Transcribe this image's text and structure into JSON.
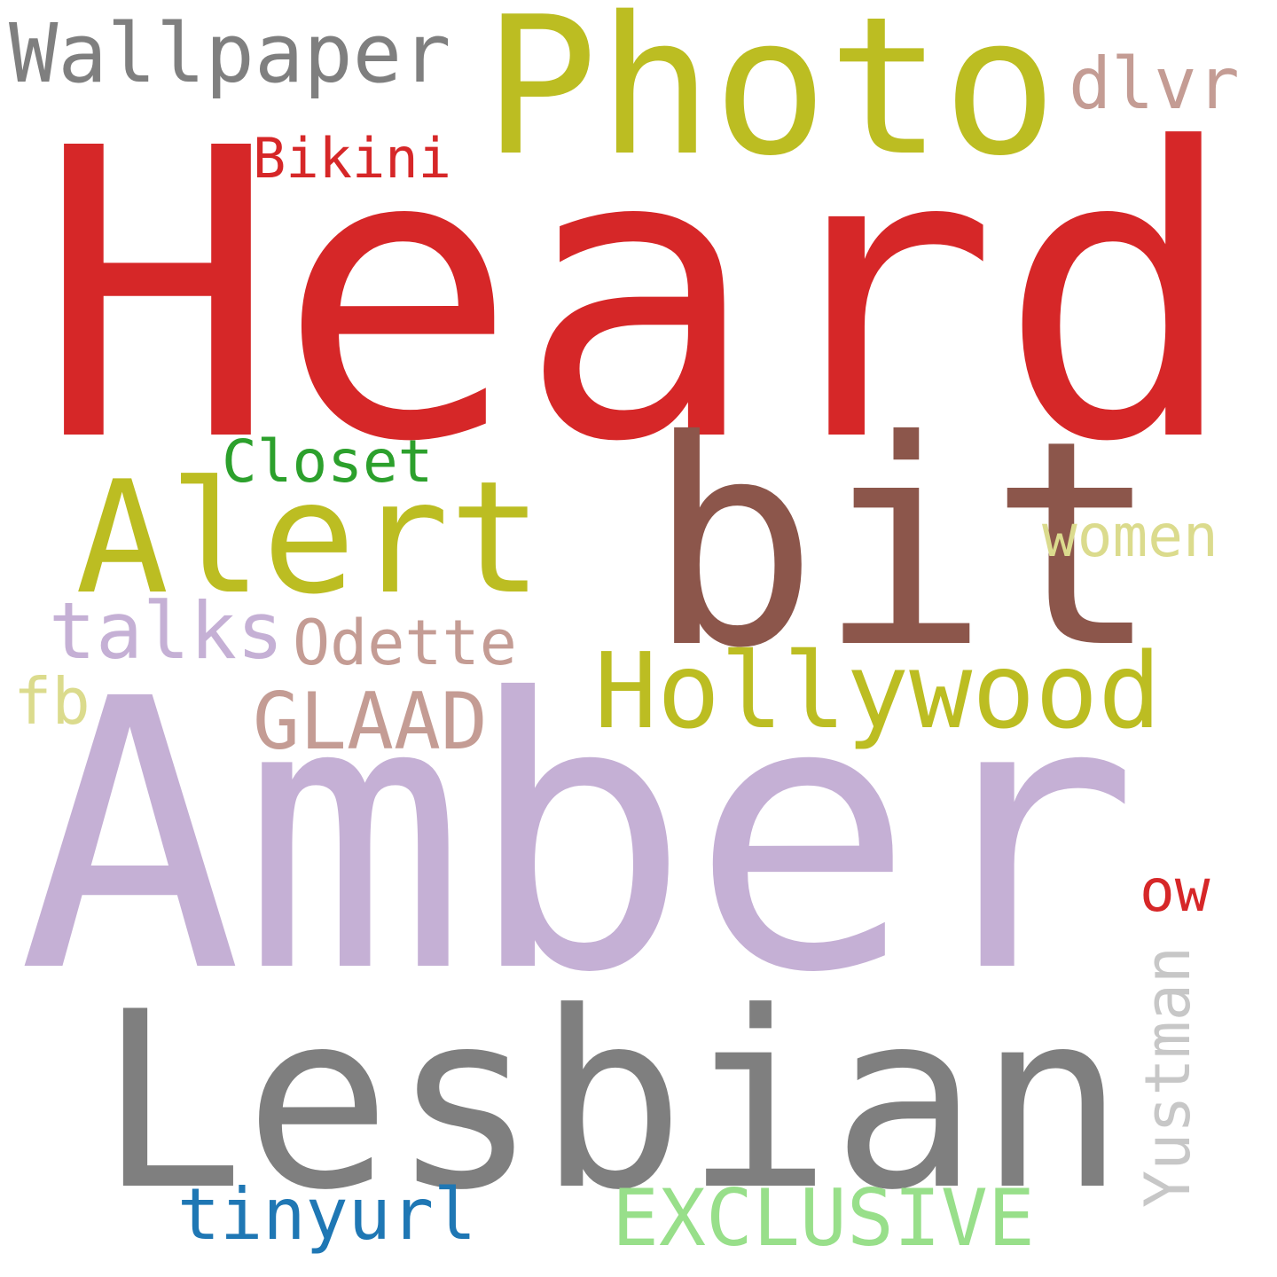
{
  "words": {
    "heard": {
      "text": "Heard",
      "color": "#d62728"
    },
    "amber": {
      "text": "Amber",
      "color": "#c5b0d5"
    },
    "lesbian": {
      "text": "Lesbian",
      "color": "#7f7f7f"
    },
    "photo": {
      "text": "Photo",
      "color": "#bcbd22"
    },
    "bit": {
      "text": "bit",
      "color": "#8c564b"
    },
    "alert": {
      "text": "Alert",
      "color": "#bcbd22"
    },
    "hollywood": {
      "text": "Hollywood",
      "color": "#bcbd22"
    },
    "wallpaper": {
      "text": "Wallpaper",
      "color": "#7f7f7f"
    },
    "dlvr": {
      "text": "dlvr",
      "color": "#c49c94"
    },
    "bikini": {
      "text": "Bikini",
      "color": "#d62728"
    },
    "closet": {
      "text": "Closet",
      "color": "#2ca02c"
    },
    "women": {
      "text": "women",
      "color": "#dbdb8d"
    },
    "talks": {
      "text": "talks",
      "color": "#c5b0d5"
    },
    "odette": {
      "text": "Odette",
      "color": "#c49c94"
    },
    "fb": {
      "text": "fb",
      "color": "#dbdb8d"
    },
    "glaad": {
      "text": "GLAAD",
      "color": "#c49c94"
    },
    "ow": {
      "text": "ow",
      "color": "#d62728"
    },
    "yustman": {
      "text": "Yustman",
      "color": "#c7c7c7"
    },
    "tinyurl": {
      "text": "tinyurl",
      "color": "#1f77b4"
    },
    "exclusive": {
      "text": "EXCLUSIVE",
      "color": "#98df8a"
    }
  }
}
